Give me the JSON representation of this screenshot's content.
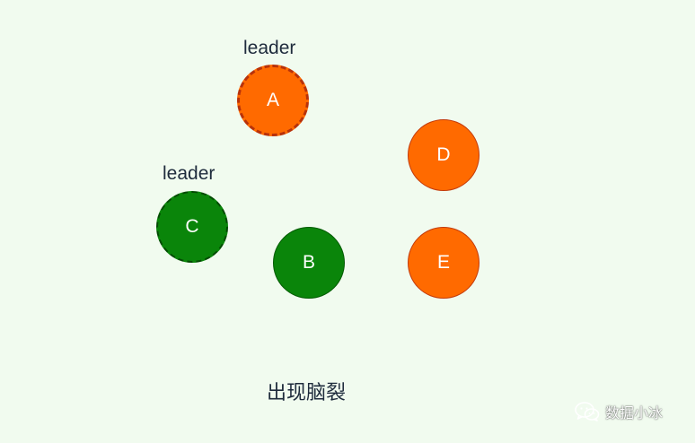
{
  "nodes": [
    {
      "id": "A",
      "label": "A",
      "color": "#ff6a00",
      "leader": true
    },
    {
      "id": "B",
      "label": "B",
      "color": "#0a850a",
      "leader": false
    },
    {
      "id": "C",
      "label": "C",
      "color": "#0a850a",
      "leader": true
    },
    {
      "id": "D",
      "label": "D",
      "color": "#ff6a00",
      "leader": false
    },
    {
      "id": "E",
      "label": "E",
      "color": "#ff6a00",
      "leader": false
    }
  ],
  "leader_labels": {
    "a": "leader",
    "c": "leader"
  },
  "caption": "出现脑裂",
  "watermark": {
    "icon": "wechat-icon",
    "text": "数据小冰"
  },
  "colors": {
    "background": "#f1fbef",
    "orange": "#ff6a00",
    "green": "#0a850a",
    "text": "#1e2b3c"
  }
}
